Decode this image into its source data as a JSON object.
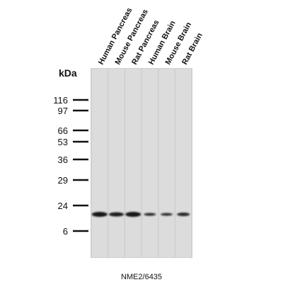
{
  "lanes": [
    "Human Pancreas",
    "Mouse Pancreas",
    "Rat Pancreas",
    "Human Brain",
    "Mouse Brain",
    "Rat Brain"
  ],
  "markers": {
    "unit": "kDa",
    "labels": [
      "116",
      "97",
      "66",
      "53",
      "36",
      "29",
      "24",
      "6"
    ]
  },
  "caption": "NME2/6435"
}
